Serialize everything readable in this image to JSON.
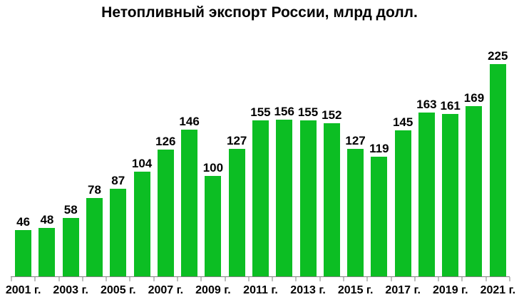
{
  "chart_data": {
    "type": "bar",
    "title": "Нетопливный экспорт России, млрд долл.",
    "categories": [
      "2001",
      "2002",
      "2003",
      "2004",
      "2005",
      "2006",
      "2007",
      "2008",
      "2009",
      "2010",
      "2011",
      "2012",
      "2013",
      "2014",
      "2015",
      "2016",
      "2017",
      "2018",
      "2019",
      "2020",
      "2021"
    ],
    "values": [
      46,
      48,
      58,
      78,
      87,
      104,
      126,
      146,
      100,
      127,
      155,
      156,
      155,
      152,
      127,
      119,
      145,
      163,
      161,
      169,
      225
    ],
    "x_tick_labels": [
      "2001 г.",
      "2003 г.",
      "2005 г.",
      "2007 г.",
      "2009 г.",
      "2011 г.",
      "2013 г.",
      "2015 г.",
      "2017 г.",
      "2019 г.",
      "2021 г."
    ],
    "xlabel": "",
    "ylabel": "",
    "ylim": [
      0,
      225
    ],
    "grid": false,
    "legend": null,
    "value_labels_shown": true,
    "bar_color": "#0cbe23",
    "axis_color": "#808080",
    "text_color": "#000000",
    "background_color": "#ffffff"
  }
}
